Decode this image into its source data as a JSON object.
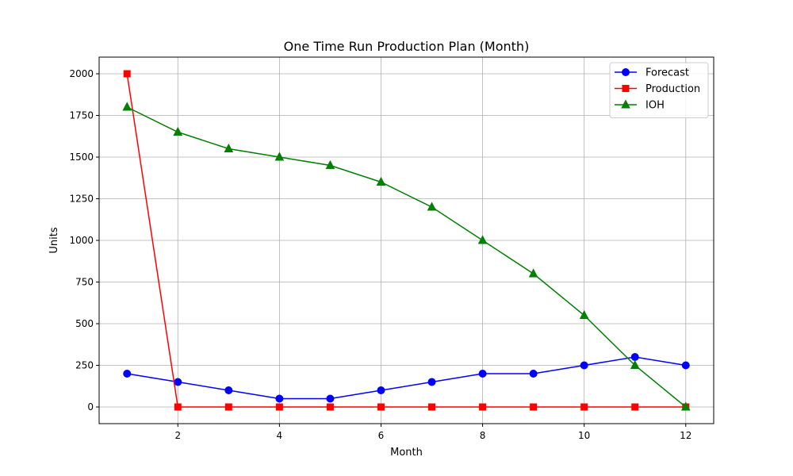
{
  "chart_data": {
    "type": "line",
    "title": "One Time Run Production Plan (Month)",
    "xlabel": "Month",
    "ylabel": "Units",
    "x": [
      1,
      2,
      3,
      4,
      5,
      6,
      7,
      8,
      9,
      10,
      11,
      12
    ],
    "xlim": [
      0.45,
      12.55
    ],
    "ylim": [
      -100,
      2100
    ],
    "xticks": [
      2,
      4,
      6,
      8,
      10,
      12
    ],
    "yticks": [
      0,
      250,
      500,
      750,
      1000,
      1250,
      1500,
      1750,
      2000
    ],
    "grid": true,
    "legend_position": "upper right",
    "series": [
      {
        "name": "Forecast",
        "color": "#0000ff",
        "marker": "circle",
        "values": [
          200,
          150,
          100,
          50,
          50,
          100,
          150,
          200,
          200,
          250,
          300,
          250
        ]
      },
      {
        "name": "Production",
        "color": "#ff0000",
        "marker": "square",
        "values": [
          2000,
          0,
          0,
          0,
          0,
          0,
          0,
          0,
          0,
          0,
          0,
          0
        ]
      },
      {
        "name": "IOH",
        "color": "#008000",
        "marker": "triangle",
        "values": [
          1800,
          1650,
          1550,
          1500,
          1450,
          1350,
          1200,
          1000,
          800,
          550,
          250,
          0
        ]
      }
    ]
  }
}
